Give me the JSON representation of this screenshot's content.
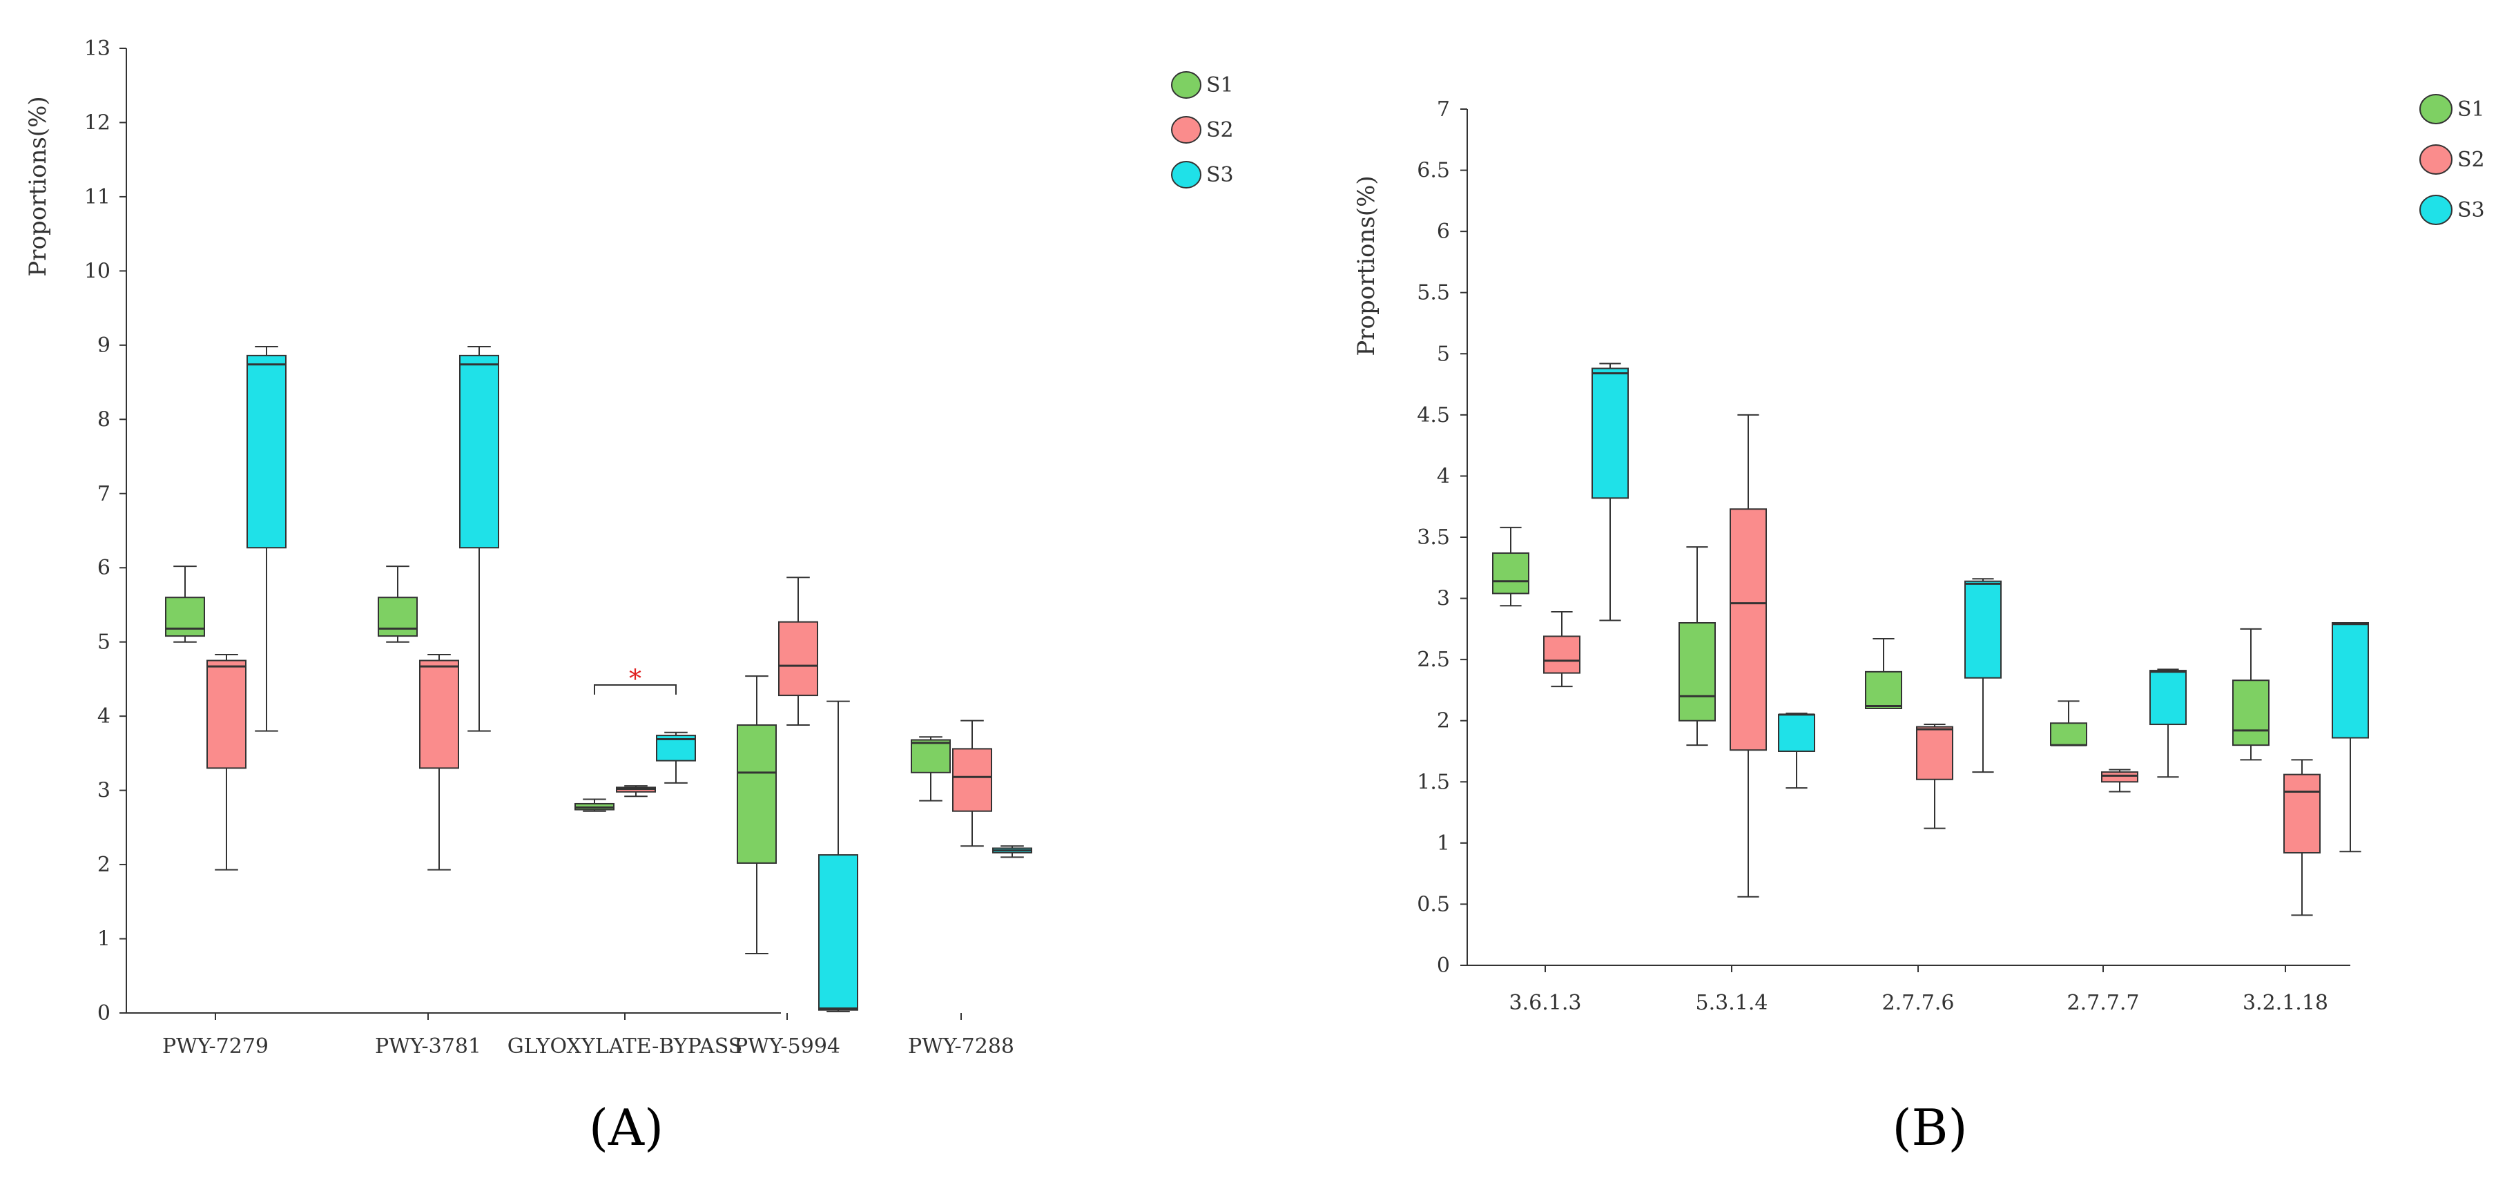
{
  "panel_labels": {
    "a": "(A)",
    "b": "(B)"
  },
  "colors": {
    "S1": "#7ed063",
    "S2": "#fa8c8c",
    "S3": "#1fe1e8",
    "stroke": "#333333",
    "star": "#e02020"
  },
  "chart_data": [
    {
      "type": "box",
      "panel": "A",
      "ylabel": "Proportions(%)",
      "xlabel": "",
      "ylim": [
        0,
        13
      ],
      "yticks": [
        "0",
        "1",
        "2",
        "3",
        "4",
        "5",
        "6",
        "7",
        "8",
        "9",
        "10",
        "11",
        "12",
        "13"
      ],
      "legend_position": "top-right",
      "legend": [
        "S1",
        "S2",
        "S3"
      ],
      "categories": [
        "PWY-7279",
        "PWY-3781",
        "GLYOXYLATE-BYPASS",
        "PWY-5994",
        "PWY-7288"
      ],
      "annotation": "*",
      "series": [
        {
          "name": "S1",
          "boxes": [
            {
              "min": 5.0,
              "q1": 5.08,
              "median": 5.18,
              "q3": 5.6,
              "max": 6.02
            },
            {
              "min": 5.0,
              "q1": 5.08,
              "median": 5.18,
              "q3": 5.6,
              "max": 6.02
            },
            {
              "min": 2.72,
              "q1": 2.74,
              "median": 2.77,
              "q3": 2.82,
              "max": 2.88
            },
            {
              "min": 0.8,
              "q1": 2.02,
              "median": 3.24,
              "q3": 3.88,
              "max": 4.54
            },
            {
              "min": 2.86,
              "q1": 3.24,
              "median": 3.64,
              "q3": 3.68,
              "max": 3.72
            }
          ]
        },
        {
          "name": "S2",
          "boxes": [
            {
              "min": 1.93,
              "q1": 3.3,
              "median": 4.67,
              "q3": 4.75,
              "max": 4.83
            },
            {
              "min": 1.93,
              "q1": 3.3,
              "median": 4.67,
              "q3": 4.75,
              "max": 4.83
            },
            {
              "min": 2.92,
              "q1": 2.98,
              "median": 3.02,
              "q3": 3.04,
              "max": 3.06
            },
            {
              "min": 3.88,
              "q1": 4.28,
              "median": 4.68,
              "q3": 5.27,
              "max": 5.87
            },
            {
              "min": 2.25,
              "q1": 2.72,
              "median": 3.18,
              "q3": 3.56,
              "max": 3.94
            }
          ]
        },
        {
          "name": "S3",
          "boxes": [
            {
              "min": 3.8,
              "q1": 6.27,
              "median": 8.74,
              "q3": 8.86,
              "max": 8.98
            },
            {
              "min": 3.8,
              "q1": 6.27,
              "median": 8.74,
              "q3": 8.86,
              "max": 8.98
            },
            {
              "min": 3.1,
              "q1": 3.4,
              "median": 3.69,
              "q3": 3.74,
              "max": 3.78
            },
            {
              "min": 0.02,
              "q1": 0.04,
              "median": 0.06,
              "q3": 2.13,
              "max": 4.2
            },
            {
              "min": 2.1,
              "q1": 2.16,
              "median": 2.19,
              "q3": 2.22,
              "max": 2.25
            }
          ]
        }
      ]
    },
    {
      "type": "box",
      "panel": "B",
      "ylabel": "Proportions(%)",
      "xlabel": "",
      "ylim": [
        0,
        7
      ],
      "yticks": [
        "0",
        "0.5",
        "1",
        "1.5",
        "2",
        "2.5",
        "3",
        "3.5",
        "4",
        "4.5",
        "5",
        "5.5",
        "6",
        "6.5",
        "7"
      ],
      "legend_position": "top-right",
      "legend": [
        "S1",
        "S2",
        "S3"
      ],
      "categories": [
        "3.6.1.3",
        "5.3.1.4",
        "2.7.7.6",
        "2.7.7.7",
        "3.2.1.18"
      ],
      "series": [
        {
          "name": "S1",
          "boxes": [
            {
              "min": 2.94,
              "q1": 3.04,
              "median": 3.14,
              "q3": 3.37,
              "max": 3.58
            },
            {
              "min": 1.8,
              "q1": 2.0,
              "median": 2.2,
              "q3": 2.8,
              "max": 3.42
            },
            {
              "min": 2.1,
              "q1": 2.1,
              "median": 2.12,
              "q3": 2.4,
              "max": 2.67
            },
            {
              "min": 1.8,
              "q1": 1.8,
              "median": 1.8,
              "q3": 1.98,
              "max": 2.16
            },
            {
              "min": 1.68,
              "q1": 1.8,
              "median": 1.92,
              "q3": 2.33,
              "max": 2.75
            }
          ]
        },
        {
          "name": "S2",
          "boxes": [
            {
              "min": 2.28,
              "q1": 2.39,
              "median": 2.49,
              "q3": 2.69,
              "max": 2.89
            },
            {
              "min": 0.56,
              "q1": 1.76,
              "median": 2.96,
              "q3": 3.73,
              "max": 4.5
            },
            {
              "min": 1.12,
              "q1": 1.52,
              "median": 1.93,
              "q3": 1.95,
              "max": 1.97
            },
            {
              "min": 1.42,
              "q1": 1.5,
              "median": 1.55,
              "q3": 1.58,
              "max": 1.6
            },
            {
              "min": 0.41,
              "q1": 0.92,
              "median": 1.42,
              "q3": 1.56,
              "max": 1.68
            }
          ]
        },
        {
          "name": "S3",
          "boxes": [
            {
              "min": 2.82,
              "q1": 3.82,
              "median": 4.84,
              "q3": 4.88,
              "max": 4.92
            },
            {
              "min": 1.45,
              "q1": 1.75,
              "median": 2.05,
              "q3": 2.05,
              "max": 2.06
            },
            {
              "min": 1.58,
              "q1": 2.35,
              "median": 3.12,
              "q3": 3.14,
              "max": 3.16
            },
            {
              "min": 1.54,
              "q1": 1.97,
              "median": 2.4,
              "q3": 2.41,
              "max": 2.42
            },
            {
              "min": 0.93,
              "q1": 1.86,
              "median": 2.79,
              "q3": 2.8,
              "max": 2.8
            }
          ]
        }
      ]
    }
  ]
}
